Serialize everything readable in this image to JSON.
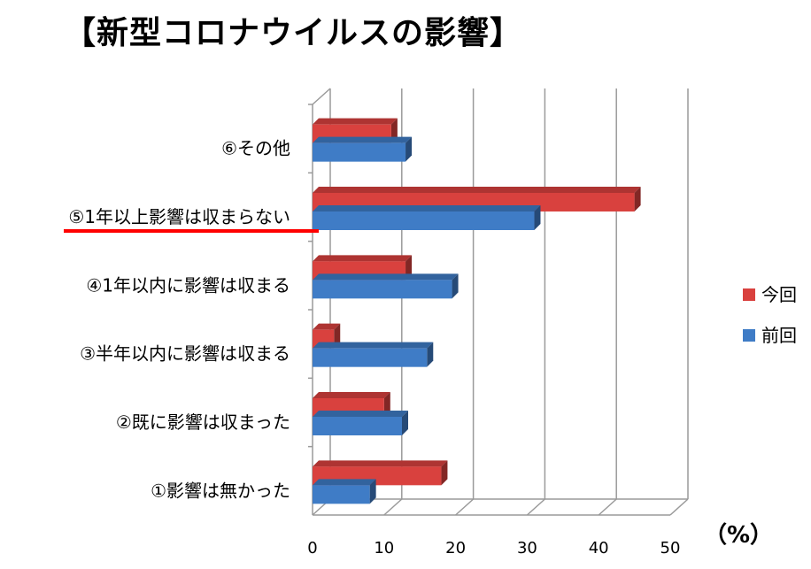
{
  "chart_data": {
    "type": "bar",
    "orientation": "horizontal",
    "title": "【新型コロナウイルスの影響】",
    "unit_label": "（%）",
    "categories": [
      "①影響は無かった",
      "②既に影響は収まった",
      "③半年以内に影響は収まる",
      "④1年以内に影響は収まる",
      "⑤1年以上影響は収まらない",
      "⑥その他"
    ],
    "series": [
      {
        "name": "今回",
        "color": "#D9413E",
        "values": [
          18,
          10,
          3,
          13,
          45,
          11
        ]
      },
      {
        "name": "前回",
        "color": "#3F7CC6",
        "values": [
          8,
          12.5,
          16,
          19.5,
          31,
          13
        ]
      }
    ],
    "xlim": [
      0,
      50
    ],
    "xticks": [
      0,
      10,
      20,
      30,
      40,
      50
    ],
    "grid": true,
    "legend_position": "right",
    "highlight_category": "⑤1年以上影響は収まらない",
    "highlight_color": "#FF0000"
  }
}
